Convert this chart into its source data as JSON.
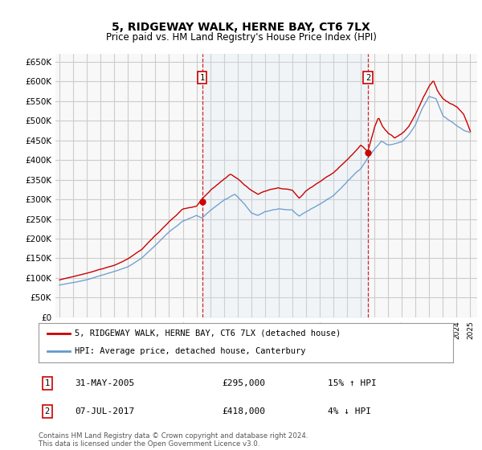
{
  "title": "5, RIDGEWAY WALK, HERNE BAY, CT6 7LX",
  "subtitle": "Price paid vs. HM Land Registry's House Price Index (HPI)",
  "background_color": "#ffffff",
  "plot_bg_color": "#f8f8f8",
  "grid_color": "#cccccc",
  "hpi_color": "#6699cc",
  "hpi_fill_color": "#d0e4f7",
  "price_color": "#cc0000",
  "marker_color": "#cc0000",
  "vline_color": "#cc0000",
  "ylim": [
    0,
    670000
  ],
  "yticks": [
    0,
    50000,
    100000,
    150000,
    200000,
    250000,
    300000,
    350000,
    400000,
    450000,
    500000,
    550000,
    600000,
    650000
  ],
  "ytick_labels": [
    "£0",
    "£50K",
    "£100K",
    "£150K",
    "£200K",
    "£250K",
    "£300K",
    "£350K",
    "£400K",
    "£450K",
    "£500K",
    "£550K",
    "£600K",
    "£650K"
  ],
  "xlim_start": 1994.7,
  "xlim_end": 2025.5,
  "purchase1_x": 2005.41,
  "purchase1_y": 295000,
  "purchase1_label": "31-MAY-2005",
  "purchase1_price": "£295,000",
  "purchase1_hpi": "15% ↑ HPI",
  "purchase2_x": 2017.52,
  "purchase2_y": 418000,
  "purchase2_label": "07-JUL-2017",
  "purchase2_price": "£418,000",
  "purchase2_hpi": "4% ↓ HPI",
  "legend_line1": "5, RIDGEWAY WALK, HERNE BAY, CT6 7LX (detached house)",
  "legend_line2": "HPI: Average price, detached house, Canterbury",
  "footnote": "Contains HM Land Registry data © Crown copyright and database right 2024.\nThis data is licensed under the Open Government Licence v3.0."
}
